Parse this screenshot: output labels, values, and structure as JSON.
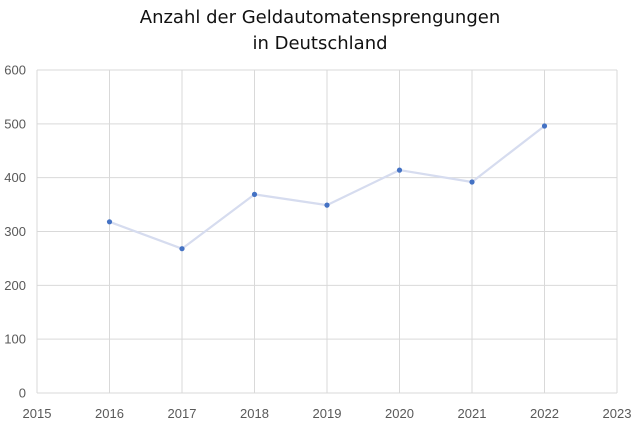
{
  "chart_data": {
    "type": "scatter",
    "title_lines": [
      "Anzahl der Geldautomatensprengungen",
      "in Deutschland"
    ],
    "xlabel": "",
    "ylabel": "",
    "xlim": [
      2015,
      2023
    ],
    "ylim": [
      0,
      600
    ],
    "x_ticks": [
      2015,
      2016,
      2017,
      2018,
      2019,
      2020,
      2021,
      2022,
      2023
    ],
    "y_ticks": [
      0,
      100,
      200,
      300,
      400,
      500,
      600
    ],
    "grid": true,
    "legend": "none",
    "series": [
      {
        "x": [
          2016,
          2017,
          2018,
          2019,
          2020,
          2021,
          2022
        ],
        "y": [
          318,
          268,
          369,
          349,
          414,
          392,
          496
        ],
        "marker_color": "#4472c4",
        "line_color": "#d6dcef",
        "style": "line-with-markers"
      }
    ]
  }
}
